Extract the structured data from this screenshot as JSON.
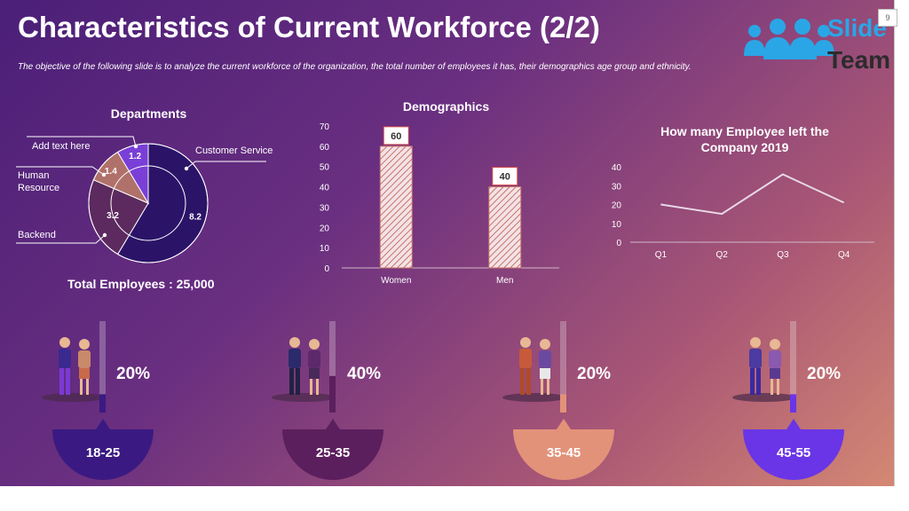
{
  "header": {
    "title": "Characteristics of Current Workforce (2/2)",
    "subtitle": "The objective of the following slide is to analyze the current workforce of the organization, the total number of employees it has, their demographics age group and ethnicity.",
    "page_number": "9",
    "logo": {
      "line1": "Slide",
      "line2": "Team",
      "icon": "people-group-icon"
    }
  },
  "departments": {
    "title": "Departments",
    "total_label": "Total Employees : 25,000",
    "callouts": {
      "add_text": "Add text here",
      "human_resource_1": "Human",
      "human_resource_2": "Resource",
      "backend": "Backend",
      "customer_service": "Customer Service"
    }
  },
  "age_groups": [
    {
      "label": "18-25",
      "percent_label": "20%",
      "value": 20,
      "color": "#3a1a82",
      "icon": "young-couple-icon"
    },
    {
      "label": "25-35",
      "percent_label": "40%",
      "value": 40,
      "color": "#5c1f5e",
      "icon": "business-couple-icon"
    },
    {
      "label": "35-45",
      "percent_label": "20%",
      "value": 20,
      "color": "#e3927a",
      "icon": "middle-age-couple-icon"
    },
    {
      "label": "45-55",
      "percent_label": "20%",
      "value": 20,
      "color": "#6a35e6",
      "icon": "senior-couple-icon"
    }
  ],
  "chart_data": [
    {
      "type": "pie",
      "title": "Departments",
      "categories": [
        "Customer Service",
        "Backend",
        "Human Resource",
        "Add text here"
      ],
      "values": [
        8.2,
        3.2,
        1.4,
        1.2
      ],
      "value_labels": [
        "8.2",
        "3.2",
        "1.4",
        "1.2"
      ],
      "colors": [
        "#2b1468",
        "#5c2a5e",
        "#b0716a",
        "#7a3fd6"
      ],
      "donut": true
    },
    {
      "type": "bar",
      "title": "Demographics",
      "categories": [
        "Women",
        "Men"
      ],
      "values": [
        60,
        40
      ],
      "value_labels": [
        "60",
        "40"
      ],
      "ylim": [
        0,
        70
      ],
      "yticks": [
        "0",
        "10",
        "20",
        "30",
        "40",
        "50",
        "60",
        "70"
      ],
      "xlabel": "",
      "ylabel": ""
    },
    {
      "type": "line",
      "title": "How many Employee left the Company  2019",
      "title_lines": [
        "How many Employee left the",
        "Company  2019"
      ],
      "categories": [
        "Q1",
        "Q2",
        "Q3",
        "Q4"
      ],
      "values": [
        20,
        15,
        36,
        21
      ],
      "ylim": [
        0,
        40
      ],
      "yticks": [
        "0",
        "10",
        "20",
        "30",
        "40"
      ]
    }
  ]
}
